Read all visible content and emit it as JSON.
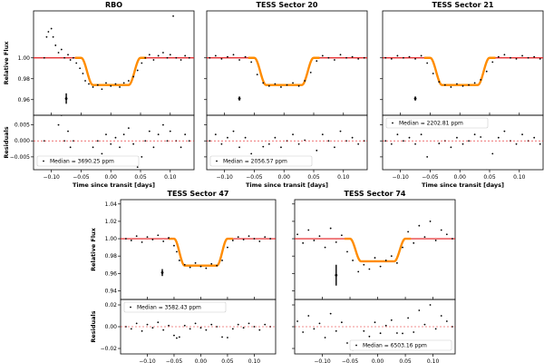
{
  "chart_data": [
    {
      "type": "scatter",
      "title": "RBO",
      "ylabel": "Relative Flux",
      "resid_ylabel": "Residuals",
      "xlabel": "Time since transit [days]",
      "xlim": [
        -0.13,
        0.14
      ],
      "ylim": [
        0.945,
        1.045
      ],
      "yticks": [
        0.96,
        0.98,
        1.0
      ],
      "rlim": [
        -0.009,
        0.008
      ],
      "rticks": [
        -0.005,
        0.0,
        0.005
      ],
      "xticks": [
        -0.1,
        -0.05,
        0.0,
        0.05,
        0.1
      ],
      "median_label": "Median = 3690.25 ppm",
      "median_loc": "bottom-left",
      "errorbar": {
        "x": -0.075,
        "y": 0.961,
        "err": 0.005
      },
      "depth": 0.974,
      "series": [
        {
          "values": [
            [
              -0.112,
              1.0
            ],
            [
              -0.108,
              1.02
            ],
            [
              -0.105,
              1.025
            ],
            [
              -0.1,
              1.028
            ],
            [
              -0.097,
              1.02
            ],
            [
              -0.093,
              1.012
            ],
            [
              -0.088,
              1.005
            ],
            [
              -0.083,
              1.008
            ],
            [
              -0.078,
              1.0
            ],
            [
              -0.072,
              1.003
            ],
            [
              -0.068,
              0.998
            ],
            [
              -0.063,
              1.0
            ],
            [
              -0.058,
              0.995
            ],
            [
              -0.052,
              0.99
            ],
            [
              -0.047,
              0.985
            ],
            [
              -0.043,
              0.978
            ],
            [
              -0.037,
              0.975
            ],
            [
              -0.03,
              0.972
            ],
            [
              -0.022,
              0.974
            ],
            [
              -0.015,
              0.97
            ],
            [
              -0.008,
              0.976
            ],
            [
              0.0,
              0.973
            ],
            [
              0.008,
              0.975
            ],
            [
              0.015,
              0.972
            ],
            [
              0.022,
              0.976
            ],
            [
              0.03,
              0.978
            ],
            [
              0.038,
              0.982
            ],
            [
              0.045,
              0.988
            ],
            [
              0.052,
              0.995
            ],
            [
              0.058,
              1.0
            ],
            [
              0.065,
              1.003
            ],
            [
              0.072,
              0.998
            ],
            [
              0.08,
              1.002
            ],
            [
              0.088,
              1.005
            ],
            [
              0.095,
              1.0
            ],
            [
              0.1,
              1.003
            ],
            [
              0.105,
              1.04
            ],
            [
              0.11,
              1.0
            ],
            [
              0.118,
              0.998
            ],
            [
              0.125,
              1.002
            ],
            [
              0.132,
              1.0
            ]
          ]
        }
      ]
    },
    {
      "type": "scatter",
      "title": "TESS Sector 20",
      "xlabel": "Time since transit [days]",
      "xlim": [
        -0.13,
        0.14
      ],
      "ylim": [
        0.945,
        1.045
      ],
      "rlim": [
        -0.009,
        0.008
      ],
      "median_label": "Median = 2056.57 ppm",
      "median_loc": "bottom-left",
      "errorbar": {
        "x": -0.075,
        "y": 0.961,
        "err": 0.002
      },
      "depth": 0.974,
      "series": [
        {
          "values": [
            [
              -0.125,
              1.0
            ],
            [
              -0.115,
              1.002
            ],
            [
              -0.105,
              0.999
            ],
            [
              -0.095,
              1.001
            ],
            [
              -0.085,
              1.003
            ],
            [
              -0.075,
              0.998
            ],
            [
              -0.065,
              1.001
            ],
            [
              -0.055,
              0.996
            ],
            [
              -0.045,
              0.984
            ],
            [
              -0.035,
              0.976
            ],
            [
              -0.025,
              0.973
            ],
            [
              -0.015,
              0.975
            ],
            [
              -0.005,
              0.972
            ],
            [
              0.005,
              0.974
            ],
            [
              0.015,
              0.976
            ],
            [
              0.025,
              0.973
            ],
            [
              0.035,
              0.978
            ],
            [
              0.045,
              0.986
            ],
            [
              0.055,
              0.997
            ],
            [
              0.065,
              1.002
            ],
            [
              0.075,
              1.0
            ],
            [
              0.085,
              0.998
            ],
            [
              0.095,
              1.003
            ],
            [
              0.105,
              1.0
            ],
            [
              0.115,
              1.001
            ],
            [
              0.125,
              0.999
            ],
            [
              0.135,
              1.0
            ]
          ]
        }
      ]
    },
    {
      "type": "scatter",
      "title": "TESS Sector 21",
      "xlabel": "Time since transit [days]",
      "xlim": [
        -0.13,
        0.14
      ],
      "ylim": [
        0.945,
        1.045
      ],
      "rlim": [
        -0.009,
        0.008
      ],
      "median_label": "Median = 2202.81 ppm",
      "median_loc": "top-left",
      "errorbar": {
        "x": -0.075,
        "y": 0.961,
        "err": 0.002
      },
      "depth": 0.974,
      "series": [
        {
          "values": [
            [
              -0.125,
              1.0
            ],
            [
              -0.115,
              0.999
            ],
            [
              -0.105,
              1.002
            ],
            [
              -0.095,
              1.0
            ],
            [
              -0.085,
              1.001
            ],
            [
              -0.075,
              0.999
            ],
            [
              -0.065,
              1.002
            ],
            [
              -0.055,
              0.995
            ],
            [
              -0.045,
              0.985
            ],
            [
              -0.035,
              0.977
            ],
            [
              -0.025,
              0.974
            ],
            [
              -0.015,
              0.972
            ],
            [
              -0.005,
              0.975
            ],
            [
              0.005,
              0.973
            ],
            [
              0.015,
              0.974
            ],
            [
              0.025,
              0.976
            ],
            [
              0.035,
              0.979
            ],
            [
              0.045,
              0.987
            ],
            [
              0.055,
              0.996
            ],
            [
              0.065,
              1.001
            ],
            [
              0.075,
              1.003
            ],
            [
              0.085,
              1.0
            ],
            [
              0.095,
              0.999
            ],
            [
              0.105,
              1.002
            ],
            [
              0.115,
              1.0
            ],
            [
              0.125,
              1.001
            ],
            [
              0.135,
              0.999
            ]
          ]
        }
      ]
    },
    {
      "type": "scatter",
      "title": "TESS Sector 47",
      "ylabel": "Relative Flux",
      "resid_ylabel": "Residuals",
      "xlim": [
        -0.15,
        0.14
      ],
      "ylim": [
        0.93,
        1.045
      ],
      "yticks": [
        0.94,
        0.96,
        0.98,
        1.0,
        1.02,
        1.04
      ],
      "rlim": [
        -0.025,
        0.025
      ],
      "rticks": [
        -0.02,
        0.0,
        0.02
      ],
      "xticks": [
        -0.1,
        -0.05,
        0.0,
        0.05,
        0.1
      ],
      "median_label": "Median = 3582.43 ppm",
      "median_loc": "top-left",
      "errorbar": {
        "x": -0.072,
        "y": 0.961,
        "err": 0.004
      },
      "depth": 0.969,
      "series": [
        {
          "values": [
            [
              -0.14,
              1.0
            ],
            [
              -0.13,
              0.998
            ],
            [
              -0.12,
              1.003
            ],
            [
              -0.11,
              0.996
            ],
            [
              -0.1,
              1.002
            ],
            [
              -0.09,
              0.999
            ],
            [
              -0.08,
              1.004
            ],
            [
              -0.07,
              0.997
            ],
            [
              -0.06,
              1.001
            ],
            [
              -0.05,
              0.992
            ],
            [
              -0.045,
              0.985
            ],
            [
              -0.04,
              0.975
            ],
            [
              -0.03,
              0.97
            ],
            [
              -0.02,
              0.967
            ],
            [
              -0.01,
              0.972
            ],
            [
              0.0,
              0.968
            ],
            [
              0.01,
              0.966
            ],
            [
              0.02,
              0.971
            ],
            [
              0.03,
              0.969
            ],
            [
              0.04,
              0.975
            ],
            [
              0.05,
              0.99
            ],
            [
              0.06,
              0.998
            ],
            [
              0.07,
              1.002
            ],
            [
              0.08,
              0.999
            ],
            [
              0.09,
              1.003
            ],
            [
              0.1,
              1.0
            ],
            [
              0.11,
              0.997
            ],
            [
              0.12,
              1.002
            ],
            [
              0.13,
              1.0
            ]
          ]
        }
      ]
    },
    {
      "type": "scatter",
      "title": "TESS Sector 74",
      "xlim": [
        -0.15,
        0.14
      ],
      "ylim": [
        0.93,
        1.045
      ],
      "rlim": [
        -0.025,
        0.025
      ],
      "xticks": [
        -0.1,
        -0.05,
        0.0,
        0.05,
        0.1
      ],
      "median_label": "Median = 6503.16 ppm",
      "median_loc": "bottom-right",
      "errorbar": {
        "x": -0.075,
        "y": 0.958,
        "err": 0.012
      },
      "depth": 0.974,
      "series": [
        {
          "values": [
            [
              -0.145,
              1.005
            ],
            [
              -0.135,
              0.995
            ],
            [
              -0.125,
              1.01
            ],
            [
              -0.115,
              0.998
            ],
            [
              -0.105,
              1.003
            ],
            [
              -0.095,
              0.99
            ],
            [
              -0.085,
              1.012
            ],
            [
              -0.075,
              0.996
            ],
            [
              -0.065,
              1.004
            ],
            [
              -0.055,
              0.985
            ],
            [
              -0.045,
              0.975
            ],
            [
              -0.035,
              0.962
            ],
            [
              -0.025,
              0.97
            ],
            [
              -0.015,
              0.965
            ],
            [
              -0.005,
              0.978
            ],
            [
              0.005,
              0.968
            ],
            [
              0.015,
              0.975
            ],
            [
              0.025,
              0.98
            ],
            [
              0.035,
              0.972
            ],
            [
              0.045,
              0.99
            ],
            [
              0.055,
              1.008
            ],
            [
              0.065,
              0.995
            ],
            [
              0.075,
              1.015
            ],
            [
              0.085,
              1.002
            ],
            [
              0.095,
              1.02
            ],
            [
              0.105,
              0.998
            ],
            [
              0.115,
              1.01
            ],
            [
              0.125,
              1.005
            ],
            [
              0.135,
              1.0
            ]
          ]
        }
      ]
    }
  ]
}
